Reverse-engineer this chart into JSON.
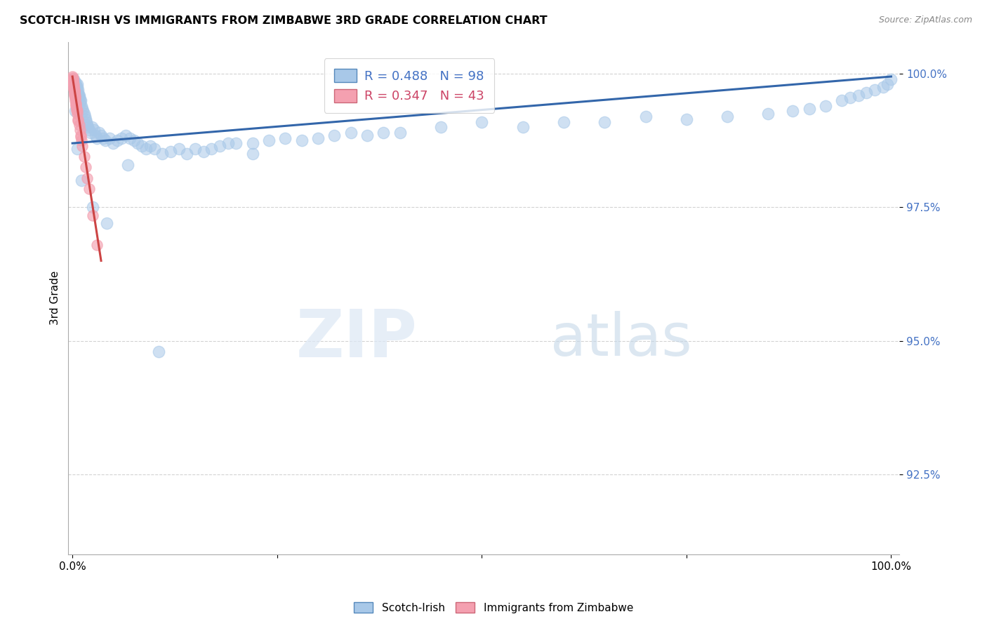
{
  "title": "SCOTCH-IRISH VS IMMIGRANTS FROM ZIMBABWE 3RD GRADE CORRELATION CHART",
  "source": "Source: ZipAtlas.com",
  "ylabel": "3rd Grade",
  "blue_label": "Scotch-Irish",
  "pink_label": "Immigrants from Zimbabwe",
  "blue_R": 0.488,
  "blue_N": 98,
  "pink_R": 0.347,
  "pink_N": 43,
  "blue_color": "#a8c8e8",
  "pink_color": "#f4a0b0",
  "blue_line_color": "#3366aa",
  "pink_line_color": "#cc4444",
  "watermark_zip": "ZIP",
  "watermark_atlas": "atlas",
  "ylim_low": 91.0,
  "ylim_high": 100.6,
  "xlim_low": -0.5,
  "xlim_high": 101.0,
  "yticks": [
    92.5,
    95.0,
    97.5,
    100.0
  ],
  "ytick_labels": [
    "92.5%",
    "95.0%",
    "97.5%",
    "100.0%"
  ],
  "blue_x": [
    0.1,
    0.15,
    0.2,
    0.25,
    0.3,
    0.35,
    0.4,
    0.45,
    0.5,
    0.55,
    0.6,
    0.65,
    0.7,
    0.75,
    0.8,
    0.85,
    0.9,
    0.95,
    1.0,
    1.1,
    1.2,
    1.3,
    1.4,
    1.5,
    1.6,
    1.7,
    1.8,
    1.9,
    2.0,
    2.2,
    2.4,
    2.6,
    2.8,
    3.0,
    3.2,
    3.5,
    3.8,
    4.0,
    4.5,
    5.0,
    5.5,
    6.0,
    6.5,
    7.0,
    7.5,
    8.0,
    8.5,
    9.0,
    9.5,
    10.0,
    11.0,
    12.0,
    13.0,
    14.0,
    15.0,
    16.0,
    17.0,
    18.0,
    19.0,
    20.0,
    22.0,
    24.0,
    26.0,
    28.0,
    30.0,
    32.0,
    34.0,
    36.0,
    38.0,
    40.0,
    45.0,
    50.0,
    55.0,
    60.0,
    65.0,
    70.0,
    75.0,
    80.0,
    85.0,
    88.0,
    90.0,
    92.0,
    94.0,
    95.0,
    96.0,
    97.0,
    98.0,
    99.0,
    99.5,
    100.0,
    0.3,
    0.6,
    1.1,
    2.5,
    4.2,
    6.8,
    10.5,
    22.0
  ],
  "blue_y": [
    99.85,
    99.9,
    99.8,
    99.75,
    99.85,
    99.7,
    99.8,
    99.75,
    99.7,
    99.8,
    99.75,
    99.7,
    99.65,
    99.6,
    99.55,
    99.6,
    99.5,
    99.45,
    99.5,
    99.4,
    99.35,
    99.3,
    99.25,
    99.2,
    99.15,
    99.1,
    99.05,
    99.0,
    98.95,
    98.9,
    99.0,
    98.95,
    98.85,
    98.8,
    98.9,
    98.85,
    98.8,
    98.75,
    98.8,
    98.7,
    98.75,
    98.8,
    98.85,
    98.8,
    98.75,
    98.7,
    98.65,
    98.6,
    98.65,
    98.6,
    98.5,
    98.55,
    98.6,
    98.5,
    98.6,
    98.55,
    98.6,
    98.65,
    98.7,
    98.7,
    98.7,
    98.75,
    98.8,
    98.75,
    98.8,
    98.85,
    98.9,
    98.85,
    98.9,
    98.9,
    99.0,
    99.1,
    99.0,
    99.1,
    99.1,
    99.2,
    99.15,
    99.2,
    99.25,
    99.3,
    99.35,
    99.4,
    99.5,
    99.55,
    99.6,
    99.65,
    99.7,
    99.75,
    99.8,
    99.9,
    99.3,
    98.6,
    98.0,
    97.5,
    97.2,
    98.3,
    94.8,
    98.5
  ],
  "pink_x": [
    0.02,
    0.04,
    0.06,
    0.08,
    0.1,
    0.12,
    0.14,
    0.16,
    0.18,
    0.2,
    0.22,
    0.25,
    0.28,
    0.3,
    0.33,
    0.36,
    0.4,
    0.45,
    0.5,
    0.55,
    0.6,
    0.7,
    0.8,
    0.9,
    1.0,
    1.1,
    1.2,
    1.4,
    1.6,
    1.8,
    2.0,
    2.5,
    3.0,
    0.05,
    0.1,
    0.15,
    0.2,
    0.25,
    0.3,
    0.4,
    0.5,
    0.7,
    1.0
  ],
  "pink_y": [
    99.95,
    99.9,
    99.88,
    99.85,
    99.82,
    99.8,
    99.78,
    99.75,
    99.72,
    99.7,
    99.68,
    99.65,
    99.62,
    99.6,
    99.55,
    99.5,
    99.45,
    99.4,
    99.35,
    99.3,
    99.25,
    99.15,
    99.05,
    98.95,
    98.85,
    98.75,
    98.65,
    98.45,
    98.25,
    98.05,
    97.85,
    97.35,
    96.8,
    99.92,
    99.83,
    99.73,
    99.67,
    99.6,
    99.55,
    99.42,
    99.32,
    99.12,
    98.82
  ],
  "blue_line_x": [
    0.0,
    100.0
  ],
  "blue_line_y_start": 98.7,
  "blue_line_y_end": 99.95,
  "pink_line_x": [
    0.0,
    3.5
  ],
  "pink_line_y_start": 99.95,
  "pink_line_y_end": 96.5
}
